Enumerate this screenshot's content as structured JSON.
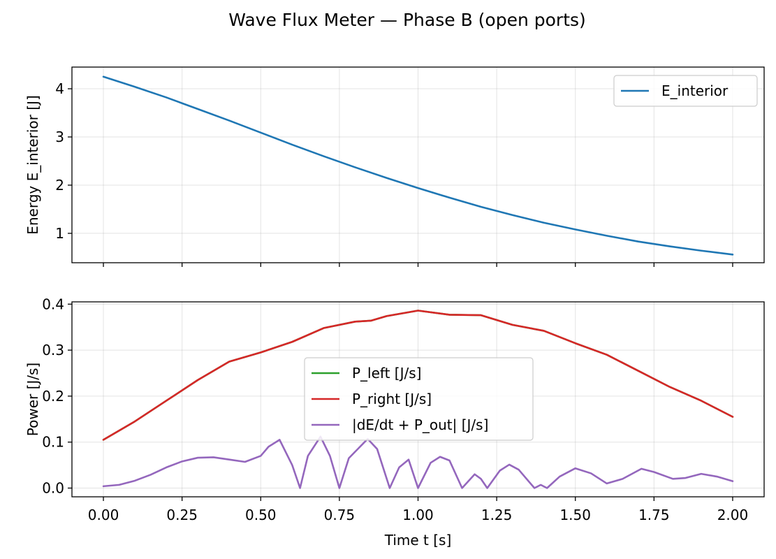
{
  "figure": {
    "suptitle": "Wave Flux Meter — Phase B (open ports)"
  },
  "chart_data": [
    {
      "type": "line",
      "title": "",
      "xlabel": "",
      "ylabel": "Energy E_interior [J]",
      "xlim": [
        -0.1,
        2.1
      ],
      "ylim": [
        0.39,
        4.45
      ],
      "xticks": [
        0.0,
        0.25,
        0.5,
        0.75,
        1.0,
        1.25,
        1.5,
        1.75,
        2.0
      ],
      "yticks": [
        1,
        2,
        3,
        4
      ],
      "ytick_labels": [
        "1",
        "2",
        "3",
        "4"
      ],
      "grid": true,
      "legend": "upper right",
      "series": [
        {
          "name": "E_interior",
          "color": "#1f77b4",
          "x": [
            0.0,
            0.1,
            0.2,
            0.25,
            0.3,
            0.4,
            0.5,
            0.6,
            0.7,
            0.8,
            0.9,
            1.0,
            1.1,
            1.2,
            1.3,
            1.4,
            1.5,
            1.6,
            1.7,
            1.8,
            1.9,
            2.0
          ],
          "y": [
            4.25,
            4.04,
            3.82,
            3.7,
            3.58,
            3.34,
            3.09,
            2.84,
            2.6,
            2.37,
            2.15,
            1.94,
            1.74,
            1.55,
            1.38,
            1.22,
            1.08,
            0.95,
            0.83,
            0.73,
            0.64,
            0.56
          ]
        }
      ]
    },
    {
      "type": "line",
      "title": "",
      "xlabel": "Time t [s]",
      "ylabel": "Power [J/s]",
      "xlim": [
        -0.1,
        2.1
      ],
      "ylim": [
        -0.019,
        0.405
      ],
      "xticks": [
        0.0,
        0.25,
        0.5,
        0.75,
        1.0,
        1.25,
        1.5,
        1.75,
        2.0
      ],
      "xtick_labels": [
        "0.00",
        "0.25",
        "0.50",
        "0.75",
        "1.00",
        "1.25",
        "1.50",
        "1.75",
        "2.00"
      ],
      "yticks": [
        0.0,
        0.1,
        0.2,
        0.3,
        0.4
      ],
      "ytick_labels": [
        "0.0",
        "0.1",
        "0.2",
        "0.3",
        "0.4"
      ],
      "grid": true,
      "legend": "center",
      "series": [
        {
          "name": "P_left [J/s]",
          "color": "#2ca02c",
          "x": [
            0.0,
            0.1,
            0.2,
            0.3,
            0.4,
            0.5,
            0.6,
            0.7,
            0.8,
            0.85,
            0.9,
            1.0,
            1.1,
            1.2,
            1.3,
            1.4,
            1.5,
            1.6,
            1.7,
            1.8,
            1.9,
            2.0
          ],
          "y": [
            0.105,
            0.145,
            0.19,
            0.235,
            0.275,
            0.295,
            0.318,
            0.348,
            0.362,
            0.364,
            0.374,
            0.386,
            0.377,
            0.376,
            0.355,
            0.342,
            0.315,
            0.29,
            0.255,
            0.22,
            0.19,
            0.155
          ]
        },
        {
          "name": "P_right [J/s]",
          "color": "#d62728",
          "x": [
            0.0,
            0.1,
            0.2,
            0.3,
            0.4,
            0.5,
            0.6,
            0.7,
            0.8,
            0.85,
            0.9,
            1.0,
            1.1,
            1.2,
            1.3,
            1.4,
            1.5,
            1.6,
            1.7,
            1.8,
            1.9,
            2.0
          ],
          "y": [
            0.105,
            0.145,
            0.19,
            0.235,
            0.275,
            0.295,
            0.318,
            0.348,
            0.362,
            0.364,
            0.374,
            0.386,
            0.377,
            0.376,
            0.355,
            0.342,
            0.315,
            0.29,
            0.255,
            0.22,
            0.19,
            0.155
          ]
        },
        {
          "name": "|dE/dt + P_out| [J/s]",
          "color": "#9467bd",
          "x": [
            0.0,
            0.05,
            0.1,
            0.15,
            0.2,
            0.25,
            0.3,
            0.35,
            0.4,
            0.45,
            0.5,
            0.525,
            0.56,
            0.6,
            0.625,
            0.65,
            0.69,
            0.72,
            0.75,
            0.78,
            0.84,
            0.87,
            0.91,
            0.94,
            0.97,
            1.0,
            1.04,
            1.07,
            1.1,
            1.14,
            1.18,
            1.2,
            1.22,
            1.26,
            1.29,
            1.32,
            1.37,
            1.39,
            1.41,
            1.45,
            1.5,
            1.55,
            1.6,
            1.65,
            1.71,
            1.75,
            1.81,
            1.85,
            1.9,
            1.95,
            2.0
          ],
          "y": [
            0.004,
            0.007,
            0.016,
            0.029,
            0.045,
            0.058,
            0.066,
            0.067,
            0.062,
            0.057,
            0.07,
            0.09,
            0.105,
            0.05,
            0.0,
            0.07,
            0.112,
            0.07,
            0.0,
            0.065,
            0.107,
            0.085,
            0.0,
            0.045,
            0.062,
            0.0,
            0.055,
            0.068,
            0.06,
            0.0,
            0.03,
            0.02,
            0.0,
            0.038,
            0.051,
            0.04,
            0.0,
            0.007,
            0.0,
            0.025,
            0.043,
            0.032,
            0.01,
            0.02,
            0.042,
            0.035,
            0.02,
            0.022,
            0.031,
            0.025,
            0.015
          ]
        }
      ]
    }
  ]
}
